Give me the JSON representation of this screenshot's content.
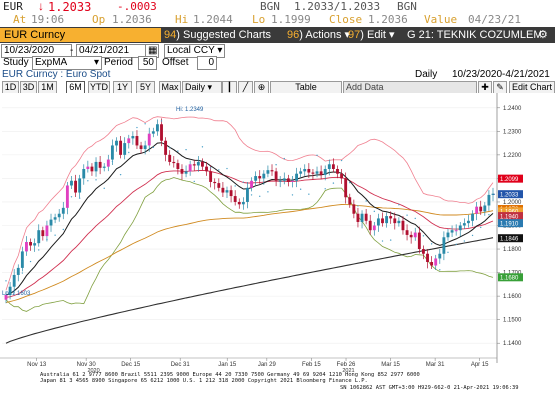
{
  "quote": {
    "ticker": "EUR",
    "last": "1.2033",
    "change": "-.0003",
    "source1": "BGN",
    "bidask": "1.2033/1.2033",
    "source2": "BGN",
    "at_label": "At",
    "at_time": "19:06",
    "op_label": "Op",
    "op_value": "1.2036",
    "hi_label": "Hi",
    "hi_value": "1.2044",
    "lo_label": "Lo",
    "lo_value": "1.1999",
    "close_label": "Close",
    "close_value": "1.2036",
    "value_label": "Value",
    "value_date": "04/23/21",
    "down_arrow": "↓"
  },
  "toolbar": {
    "security": "EUR Curncy",
    "suggested_num": "94",
    "suggested_label": "Suggested Charts",
    "actions_num": "96",
    "actions_label": "Actions",
    "edit_num": "97",
    "edit_label": "Edit",
    "news_label": "G 21: TEKNIK COZUMLEM..."
  },
  "params": {
    "start_date": "10/23/2020",
    "end_date": "04/21/2021",
    "currency": "Local CCY",
    "study_label": "Study",
    "study_value": "ExpMA",
    "period_label": "Period",
    "period_value": "50",
    "offset_label": "Offset",
    "offset_value": "0"
  },
  "header": {
    "title": "EUR Curncy : Euro Spot",
    "frequency": "Daily",
    "range": "10/23/2020-4/21/2021"
  },
  "ranges": [
    "1D",
    "3D",
    "1M",
    "6M",
    "YTD",
    "1Y",
    "5Y",
    "Max"
  ],
  "selected_range": "6M",
  "freq_select": "Daily",
  "table_label": "Table",
  "add_data": "Add Data",
  "edit_chart": "Edit Chart",
  "colors": {
    "up_candle": "#2a8aa8",
    "down_candle": "#b01030",
    "ema_black": "#1a1a1a",
    "ema_red": "#d03050",
    "ema_orange": "#d08a20",
    "ema_green": "#80a040",
    "bollinger_pink": "#f08090",
    "sma_200": "#303030",
    "psar_blue": "#4aa0c8"
  },
  "chart_data": {
    "type": "candlestick",
    "yaxis_ticks": [
      "1.2400",
      "1.2300",
      "1.2200",
      "1.2100",
      "1.2000",
      "1.1900",
      "1.1800",
      "1.1700",
      "1.1600",
      "1.1500",
      "1.1400"
    ],
    "xaxis_ticks": [
      "Nov 13",
      "Nov 30",
      "Dec 15",
      "Dec 31",
      "Jan 15",
      "Jan 29",
      "Feb 15",
      "Feb 26",
      "Mar 15",
      "Mar 31",
      "Apr 15"
    ],
    "year_labels": [
      "2020",
      "2021"
    ],
    "ylim": [
      1.135,
      1.245
    ],
    "high_annotation": "Hi: 1.2349",
    "low_annotation": "Lo: 1.1603",
    "price_tags": [
      {
        "value": "1.2099",
        "color": "#e0001a"
      },
      {
        "value": "1.2033",
        "color": "#2255aa"
      },
      {
        "value": "1.1970",
        "color": "#e07000"
      },
      {
        "value": "1.1960",
        "color": "#f0a030"
      },
      {
        "value": "1.1940",
        "color": "#c03040"
      },
      {
        "value": "1.1910",
        "color": "#2a7ab0"
      },
      {
        "value": "1.1846",
        "color": "#111111"
      },
      {
        "value": "1.1680",
        "color": "#38a038"
      }
    ],
    "close": [
      1.1605,
      1.164,
      1.169,
      1.172,
      1.179,
      1.183,
      1.1815,
      1.1825,
      1.188,
      1.1855,
      1.19,
      1.1925,
      1.1935,
      1.195,
      1.1975,
      1.207,
      1.209,
      1.204,
      1.21,
      1.214,
      1.215,
      1.213,
      1.217,
      1.2145,
      1.215,
      1.218,
      1.224,
      1.226,
      1.22,
      1.225,
      1.227,
      1.228,
      1.224,
      1.2225,
      1.224,
      1.229,
      1.23,
      1.233,
      1.226,
      1.22,
      1.217,
      1.2165,
      1.214,
      1.212,
      1.213,
      1.216,
      1.2155,
      1.217,
      1.215,
      1.213,
      1.2085,
      1.208,
      1.206,
      1.204,
      1.205,
      1.2025,
      1.2,
      1.199,
      1.2,
      1.206,
      1.209,
      1.211,
      1.21,
      1.212,
      1.2135,
      1.213,
      1.209,
      1.209,
      1.21,
      1.2085,
      1.209,
      1.212,
      1.213,
      1.214,
      1.2125,
      1.212,
      1.213,
      1.2115,
      1.214,
      1.216,
      1.214,
      1.212,
      1.21,
      1.202,
      1.199,
      1.195,
      1.1915,
      1.195,
      1.192,
      1.188,
      1.19,
      1.193,
      1.191,
      1.194,
      1.193,
      1.191,
      1.192,
      1.188,
      1.186,
      1.185,
      1.187,
      1.18,
      1.178,
      1.1745,
      1.173,
      1.176,
      1.178,
      1.185,
      1.187,
      1.188,
      1.188,
      1.19,
      1.191,
      1.192,
      1.195,
      1.198,
      1.196,
      1.1985,
      1.203,
      1.2035
    ]
  },
  "footer": {
    "line1": "Australia 61 2 9777 8600 Brazil 5511 2395 9000 Europe 44 20 7330 7500 Germany 49 69 9204 1210 Hong Kong 852 2977 6000",
    "line2": "Japan 81 3 4565 8900        Singapore 65 6212 1000        U.S. 1 212 318 2000        Copyright 2021 Bloomberg Finance L.P.",
    "line3": "SN 1062862 AST  GMT+3:00 H929-662-0 21-Apr-2021 19:06:39"
  }
}
